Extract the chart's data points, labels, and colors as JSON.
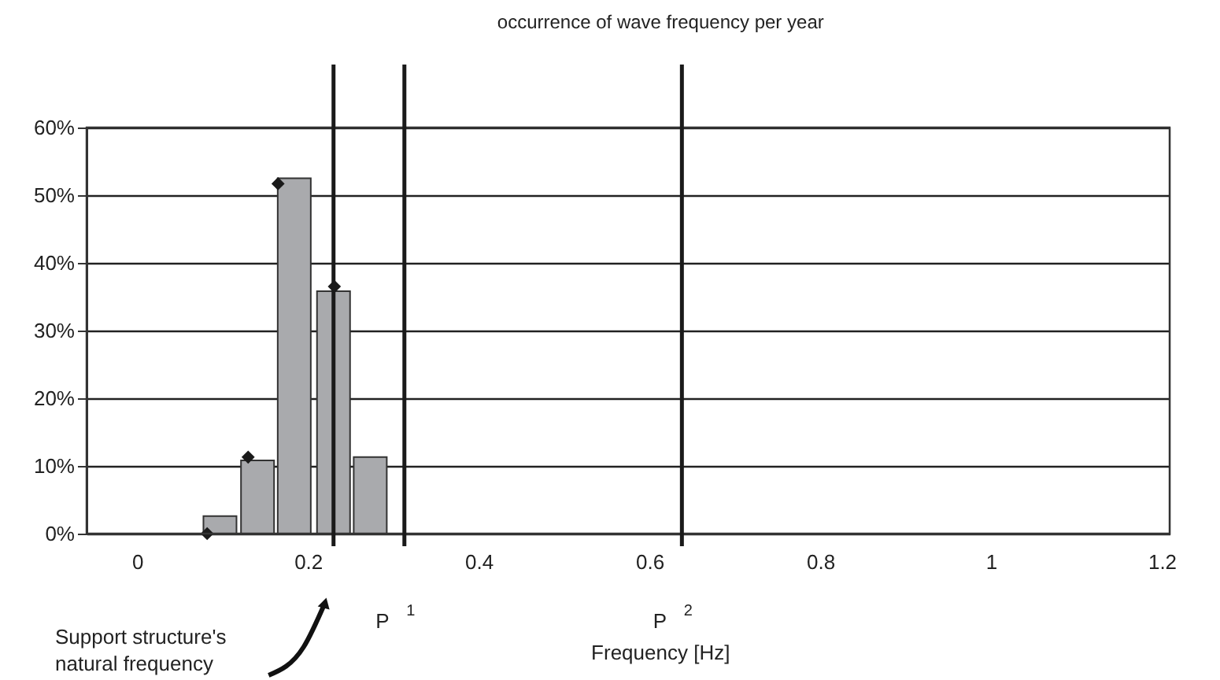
{
  "chart_data": {
    "type": "bar",
    "title": "occurrence of wave frequency per year",
    "xlabel": "Frequency [Hz]",
    "x": [
      0.097,
      0.141,
      0.184,
      0.23,
      0.273
    ],
    "series": [
      {
        "color": "#a9aaad",
        "values": [
          2.6,
          10.8,
          52.5,
          35.8,
          11.3
        ]
      },
      {
        "type": "scatter",
        "color": "#1a1a1a",
        "marker": "diamond",
        "x": [
          0.082,
          0.13,
          0.165,
          0.231
        ],
        "values": [
          0,
          11.3,
          51.7,
          36.5
        ]
      }
    ],
    "xlim": [
      -0.05,
      1.2
    ],
    "xticks": [
      0,
      0.2,
      0.4,
      0.6,
      0.8,
      1,
      1.2
    ],
    "ylim": [
      0,
      60
    ],
    "yticks": [
      {
        "value": 0,
        "label": "0%"
      },
      {
        "value": 10,
        "label": "10%"
      },
      {
        "value": 20,
        "label": "20%"
      },
      {
        "value": 30,
        "label": "30%"
      },
      {
        "value": 40,
        "label": "40%"
      },
      {
        "value": 50,
        "label": "50%"
      },
      {
        "value": 60,
        "label": "60%"
      }
    ],
    "grid": "y",
    "annotations": [
      "Support structure's\nnatural frequency"
    ],
    "ref_lines": [
      {
        "axis": "x",
        "value": 0.23,
        "color": "#1a1a1a"
      },
      {
        "axis": "x",
        "value": 0.313,
        "label": "P$^{1}$",
        "color": "#1a1a1a"
      },
      {
        "axis": "x",
        "value": 0.638,
        "label": "P$^{2}$",
        "color": "#1a1a1a"
      }
    ]
  }
}
